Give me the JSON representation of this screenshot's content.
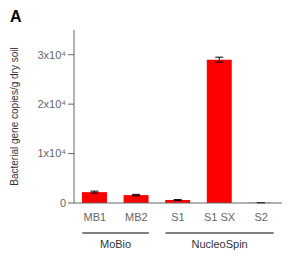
{
  "chart_data": {
    "type": "bar",
    "categories": [
      "MB1",
      "MB2",
      "S1",
      "S1 SX",
      "S2"
    ],
    "values": [
      2200,
      1600,
      600,
      29000,
      50
    ],
    "errors": [
      200,
      150,
      80,
      500,
      20
    ],
    "color": "#ff0000",
    "ylim": [
      0,
      35000
    ],
    "yticks": [
      0,
      {
        "value": 10000,
        "label": "1x10⁴"
      },
      {
        "value": 20000,
        "label": "2x10⁴"
      },
      {
        "value": 30000,
        "label": "3x10⁴"
      }
    ],
    "ylabel": "Bacterial gene copies/g dry soil",
    "groups": [
      {
        "label": "MoBio",
        "categories": [
          "MB1",
          "MB2"
        ]
      },
      {
        "label": "NucleoSpin",
        "categories": [
          "S1",
          "S1 SX",
          "S2"
        ]
      }
    ],
    "panel_label": "A"
  }
}
